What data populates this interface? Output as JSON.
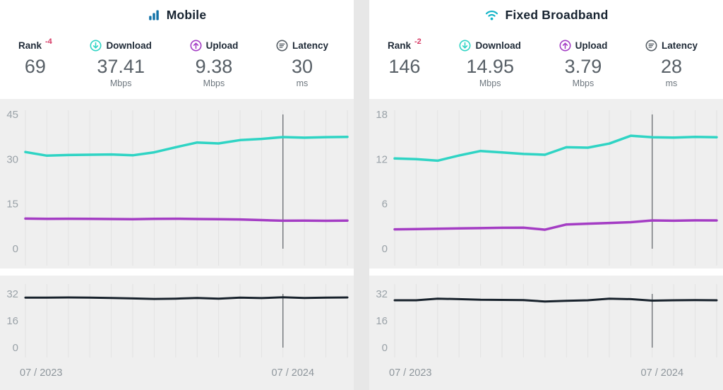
{
  "colors": {
    "download": "#2fd4c4",
    "upload": "#a43dc4",
    "latency_line": "#18222c",
    "rank_change": "#d63964",
    "grid": "#e2e2e2",
    "cursor": "#40464c",
    "mobile_icon": "#1172a8",
    "wifi_icon": "#10b3c7"
  },
  "panels": [
    {
      "title": "Mobile",
      "icon": "bar-chart-icon",
      "stats": {
        "rank": {
          "label": "Rank",
          "change": "-4",
          "value": "69",
          "unit": ""
        },
        "download": {
          "label": "Download",
          "value": "37.41",
          "unit": "Mbps"
        },
        "upload": {
          "label": "Upload",
          "value": "9.38",
          "unit": "Mbps"
        },
        "latency": {
          "label": "Latency",
          "value": "30",
          "unit": "ms"
        }
      }
    },
    {
      "title": "Fixed Broadband",
      "icon": "wifi-icon",
      "stats": {
        "rank": {
          "label": "Rank",
          "change": "-2",
          "value": "146",
          "unit": ""
        },
        "download": {
          "label": "Download",
          "value": "14.95",
          "unit": "Mbps"
        },
        "upload": {
          "label": "Upload",
          "value": "3.79",
          "unit": "Mbps"
        },
        "latency": {
          "label": "Latency",
          "value": "28",
          "unit": "ms"
        }
      }
    }
  ],
  "chart_data": [
    {
      "type": "line",
      "title": "Mobile speeds over time",
      "x_labels": [
        "07 / 2023",
        "07 / 2024"
      ],
      "n_points": 16,
      "cursor_index": 12,
      "main": {
        "ylim": [
          0,
          45
        ],
        "yticks": [
          45,
          30,
          15,
          0
        ],
        "grid": "vertical-only",
        "series": [
          {
            "name": "Download (Mbps)",
            "color": "#2fd4c4",
            "values": [
              32.4,
              31.2,
              31.4,
              31.5,
              31.6,
              31.3,
              32.3,
              34.0,
              35.6,
              35.3,
              36.4,
              36.8,
              37.41,
              37.2,
              37.4,
              37.5
            ]
          },
          {
            "name": "Upload (Mbps)",
            "color": "#a43dc4",
            "values": [
              10.1,
              10.0,
              10.05,
              10.0,
              9.95,
              9.9,
              10.0,
              10.05,
              9.95,
              9.9,
              9.8,
              9.6,
              9.38,
              9.4,
              9.35,
              9.4
            ]
          }
        ]
      },
      "latency": {
        "ylim": [
          0,
          32
        ],
        "yticks": [
          32,
          16,
          0
        ],
        "grid": "vertical-only",
        "series": [
          {
            "name": "Latency (ms)",
            "color": "#18222c",
            "values": [
              29.8,
              29.8,
              29.9,
              29.8,
              29.6,
              29.3,
              29.0,
              29.2,
              29.6,
              29.2,
              29.8,
              29.5,
              30.0,
              29.6,
              29.8,
              29.9
            ]
          }
        ]
      }
    },
    {
      "type": "line",
      "title": "Fixed Broadband speeds over time",
      "x_labels": [
        "07 / 2023",
        "07 / 2024"
      ],
      "n_points": 16,
      "cursor_index": 12,
      "main": {
        "ylim": [
          0,
          18
        ],
        "yticks": [
          18,
          12,
          6,
          0
        ],
        "grid": "vertical-only",
        "series": [
          {
            "name": "Download (Mbps)",
            "color": "#2fd4c4",
            "values": [
              12.1,
              12.0,
              11.8,
              12.5,
              13.1,
              12.9,
              12.7,
              12.6,
              13.6,
              13.55,
              14.1,
              15.15,
              14.95,
              14.9,
              15.0,
              14.95
            ]
          },
          {
            "name": "Upload (Mbps)",
            "color": "#a43dc4",
            "values": [
              2.6,
              2.62,
              2.68,
              2.72,
              2.76,
              2.8,
              2.82,
              2.55,
              3.25,
              3.35,
              3.45,
              3.55,
              3.79,
              3.75,
              3.8,
              3.79
            ]
          }
        ]
      },
      "latency": {
        "ylim": [
          0,
          32
        ],
        "yticks": [
          32,
          16,
          0
        ],
        "grid": "vertical-only",
        "series": [
          {
            "name": "Latency (ms)",
            "color": "#18222c",
            "values": [
              28.2,
              28.2,
              29.2,
              28.9,
              28.5,
              28.4,
              28.3,
              27.5,
              27.9,
              28.2,
              29.2,
              28.9,
              28.0,
              28.2,
              28.3,
              28.2
            ]
          }
        ]
      }
    }
  ]
}
